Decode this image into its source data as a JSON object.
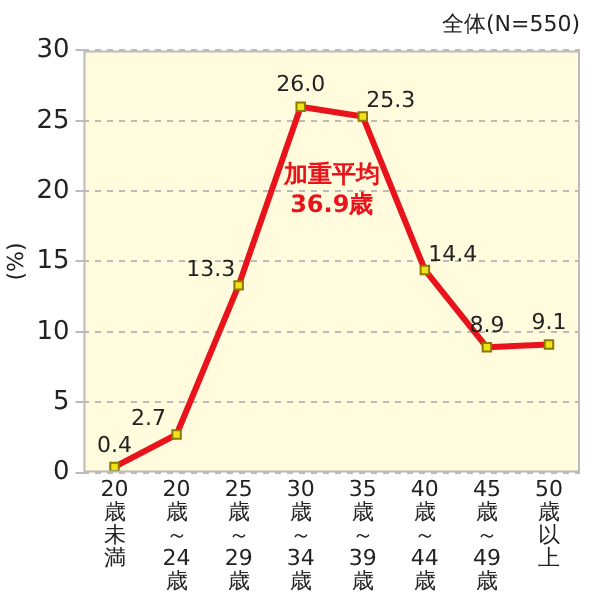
{
  "chart_data": {
    "type": "line",
    "title": "全体(N=550)",
    "ylabel": "(%)",
    "categories": [
      "20歳未満",
      "20歳～24歳",
      "25歳～29歳",
      "30歳～34歳",
      "35歳～39歳",
      "40歳～44歳",
      "45歳～49歳",
      "50歳以上"
    ],
    "series": [
      {
        "color": "#e8131b",
        "values": [
          0.4,
          2.7,
          13.3,
          26.0,
          25.3,
          14.4,
          8.9,
          9.1
        ],
        "value_labels": [
          "0.4",
          "2.7",
          "13.3",
          "26.0",
          "25.3",
          "14.4",
          "8.9",
          "9.1"
        ]
      }
    ],
    "ylim": [
      0,
      30
    ],
    "yticks": [
      0,
      5,
      10,
      15,
      20,
      25,
      30
    ],
    "grid": "y",
    "legend": false,
    "marker": "square",
    "line_style": "solid",
    "annotations": [
      "加重平均\n36.9歳"
    ]
  }
}
